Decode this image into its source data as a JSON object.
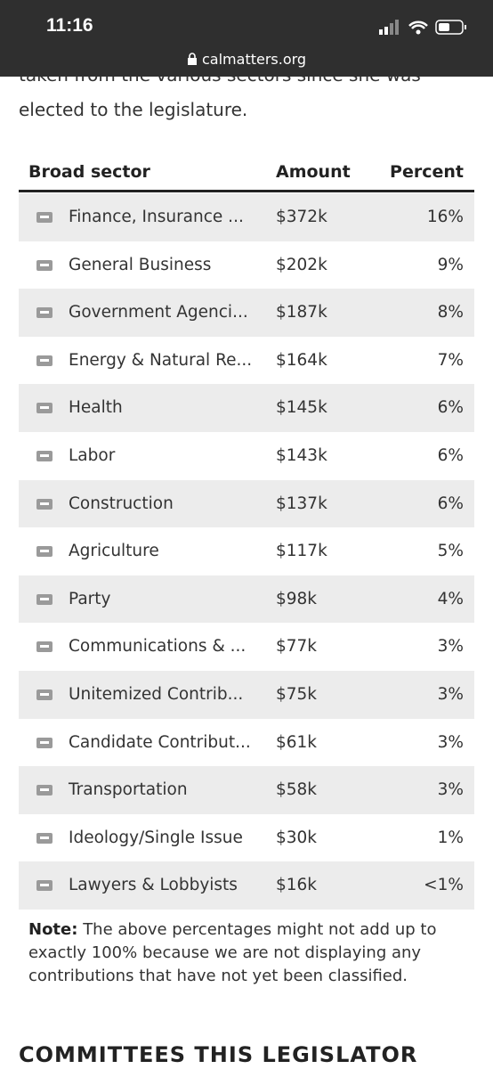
{
  "status_bar": {
    "time": "11:16",
    "url": "calmatters.org"
  },
  "intro": {
    "lines": [
      "taken from the various sectors since she was",
      "elected to the legislature."
    ]
  },
  "table": {
    "headers": [
      "Broad sector",
      "Amount",
      "Percent"
    ],
    "rows": [
      [
        "Finance, Insurance ...",
        "$372k",
        "16%"
      ],
      [
        "General Business",
        "$202k",
        "9%"
      ],
      [
        "Government Agenci...",
        "$187k",
        "8%"
      ],
      [
        "Energy & Natural Re...",
        "$164k",
        "7%"
      ],
      [
        "Health",
        "$145k",
        "6%"
      ],
      [
        "Labor",
        "$143k",
        "6%"
      ],
      [
        "Construction",
        "$137k",
        "6%"
      ],
      [
        "Agriculture",
        "$117k",
        "5%"
      ],
      [
        "Party",
        "$98k",
        "4%"
      ],
      [
        "Communications & ...",
        "$77k",
        "3%"
      ],
      [
        "Unitemized Contrib...",
        "$75k",
        "3%"
      ],
      [
        "Candidate Contribut...",
        "$61k",
        "3%"
      ],
      [
        "Transportation",
        "$58k",
        "3%"
      ],
      [
        "Ideology/Single Issue",
        "$30k",
        "1%"
      ],
      [
        "Lawyers & Lobbyists",
        "$16k",
        "<1%"
      ]
    ]
  },
  "note": {
    "label": "Note:",
    "text": "The above percentages might not add up to exactly 100% because we are not displaying any contributions that have not yet been classified."
  },
  "footer_heading": "COMMITTEES THIS LEGISLATOR"
}
